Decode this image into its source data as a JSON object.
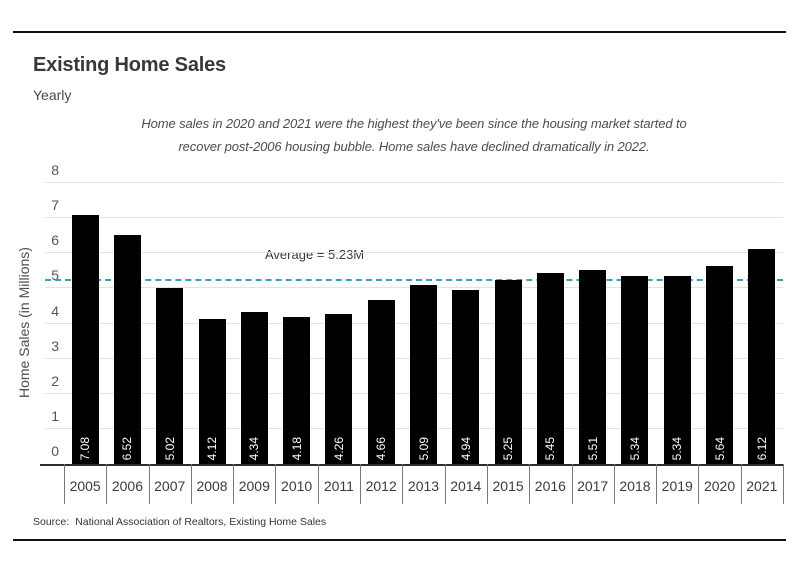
{
  "header": {
    "title": "Existing Home Sales",
    "subtitle": "Yearly"
  },
  "annotation": {
    "line1": "Home sales in 2020 and 2021 were the highest they've been since the housing market started to",
    "line2": "recover post-2006 housing bubble. Home sales have declined dramatically in 2022."
  },
  "chart_data": {
    "type": "bar",
    "title": "Existing Home Sales",
    "subtitle": "Yearly",
    "categories": [
      "2005",
      "2006",
      "2007",
      "2008",
      "2009",
      "2010",
      "2011",
      "2012",
      "2013",
      "2014",
      "2015",
      "2016",
      "2017",
      "2018",
      "2019",
      "2020",
      "2021"
    ],
    "values": [
      7.08,
      6.52,
      5.02,
      4.12,
      4.34,
      4.18,
      4.26,
      4.66,
      5.09,
      4.94,
      5.25,
      5.45,
      5.51,
      5.34,
      5.34,
      5.64,
      6.12
    ],
    "xlabel": "",
    "ylabel": "Home Sales (in Millions)",
    "ylim": [
      0,
      8
    ],
    "yticks": [
      0,
      1,
      2,
      3,
      4,
      5,
      6,
      7,
      8
    ],
    "grid": true,
    "legend": "none",
    "bar_color": "#000000",
    "value_label_color": "#ffffff",
    "average": {
      "value": 5.23,
      "label": "Average = 5.23M",
      "line_color": "#36a2ae",
      "line_style": "dashed"
    }
  },
  "source": {
    "label": "Source:",
    "text": "National Association of Realtors, Existing Home Sales"
  }
}
